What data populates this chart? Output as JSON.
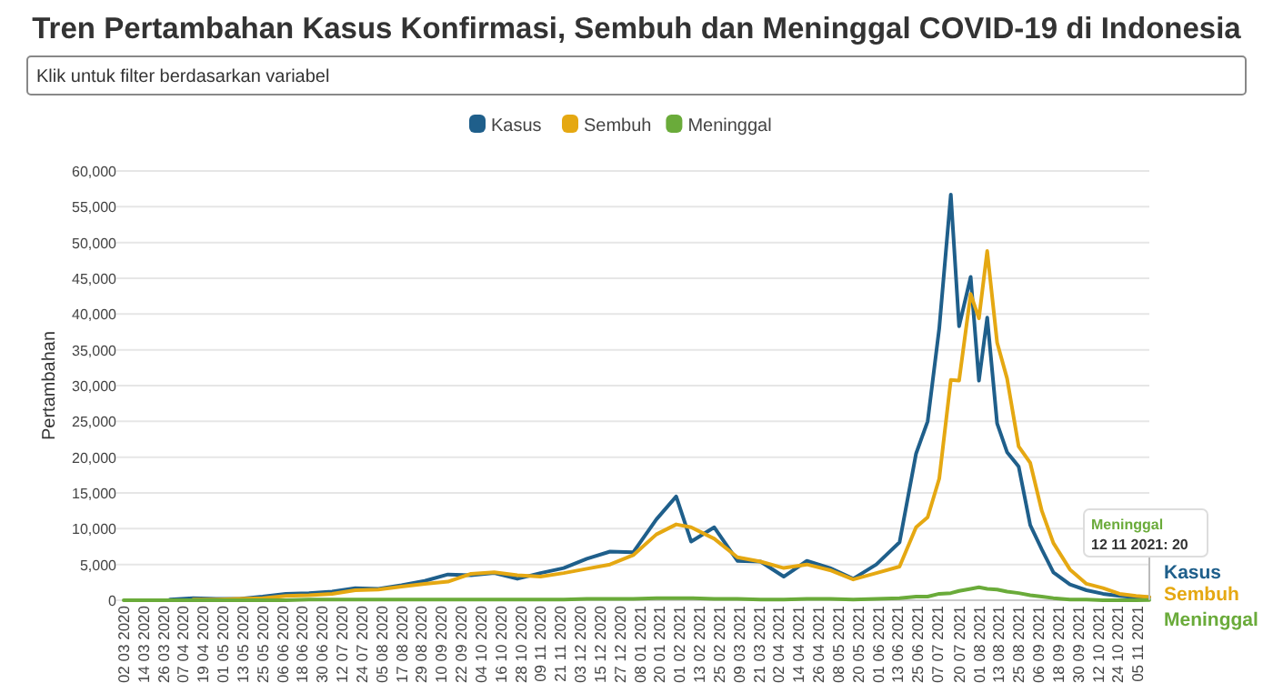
{
  "chart_data": {
    "type": "line",
    "title": "Tren Pertambahan Kasus Konfirmasi, Sembuh dan Meninggal COVID-19 di Indonesia",
    "ylabel": "Pertambahan",
    "annotations": [
      "Klik untuk filter berdasarkan variabel",
      {
        "text": "12 11 2021: 20",
        "x": "2021-11-12",
        "y": 20
      }
    ],
    "x": [
      "2020-03-02",
      "2020-03-16",
      "2020-03-30",
      "2020-04-13",
      "2020-04-27",
      "2020-05-11",
      "2020-05-25",
      "2020-06-08",
      "2020-06-22",
      "2020-07-06",
      "2020-07-20",
      "2020-08-03",
      "2020-08-17",
      "2020-08-31",
      "2020-09-14",
      "2020-09-28",
      "2020-10-12",
      "2020-10-26",
      "2020-11-09",
      "2020-11-23",
      "2020-12-07",
      "2020-12-21",
      "2021-01-04",
      "2021-01-18",
      "2021-01-30",
      "2021-02-08",
      "2021-02-22",
      "2021-03-08",
      "2021-03-22",
      "2021-04-05",
      "2021-04-19",
      "2021-05-03",
      "2021-05-17",
      "2021-05-31",
      "2021-06-14",
      "2021-06-24",
      "2021-07-01",
      "2021-07-08",
      "2021-07-15",
      "2021-07-20",
      "2021-07-27",
      "2021-08-01",
      "2021-08-06",
      "2021-08-12",
      "2021-08-18",
      "2021-08-25",
      "2021-09-01",
      "2021-09-08",
      "2021-09-15",
      "2021-09-25",
      "2021-10-05",
      "2021-10-15",
      "2021-10-25",
      "2021-11-04",
      "2021-11-12"
    ],
    "series": [
      {
        "name": "Kasus",
        "color": "#1f5f8b",
        "values": [
          null,
          null,
          100,
          300,
          200,
          200,
          500,
          900,
          1000,
          1200,
          1700,
          1600,
          2100,
          2700,
          3600,
          3500,
          3800,
          3000,
          3800,
          4500,
          5800,
          6800,
          6700,
          11300,
          14500,
          8200,
          10200,
          5500,
          5400,
          3300,
          5500,
          4500,
          3000,
          5000,
          8100,
          20500,
          25000,
          38000,
          56700,
          38300,
          45200,
          30700,
          39500,
          24700,
          20700,
          18700,
          10500,
          7100,
          3900,
          2200,
          1400,
          900,
          600,
          400,
          420
        ]
      },
      {
        "name": "Sembuh",
        "color": "#e5a812",
        "values": [
          null,
          null,
          null,
          100,
          100,
          200,
          300,
          600,
          700,
          900,
          1400,
          1500,
          1900,
          2300,
          2600,
          3700,
          3900,
          3500,
          3300,
          3800,
          4400,
          5000,
          6300,
          9200,
          10600,
          10200,
          8600,
          6000,
          5400,
          4500,
          5000,
          4200,
          2900,
          3800,
          4700,
          10200,
          11600,
          17000,
          30800,
          30700,
          42800,
          39400,
          48800,
          36000,
          31000,
          21500,
          19200,
          12500,
          8000,
          4300,
          2300,
          1700,
          900,
          600,
          450
        ]
      },
      {
        "name": "Meninggal",
        "color": "#6aab3a",
        "values": [
          0,
          0,
          0,
          0,
          0,
          0,
          0,
          0,
          100,
          100,
          100,
          100,
          100,
          100,
          100,
          100,
          100,
          100,
          100,
          100,
          200,
          200,
          200,
          300,
          300,
          300,
          200,
          200,
          100,
          100,
          200,
          200,
          100,
          200,
          300,
          500,
          500,
          900,
          1000,
          1300,
          1600,
          1800,
          1600,
          1500,
          1200,
          1000,
          700,
          500,
          300,
          100,
          100,
          0,
          0,
          0,
          20
        ]
      }
    ],
    "xlim": [
      "2020-03-02",
      "2021-11-12"
    ],
    "xticks": [
      {
        "value": "2020-03-02",
        "label": "02 03 2020"
      },
      {
        "value": "2020-03-14",
        "label": "14 03 2020"
      },
      {
        "value": "2020-03-26",
        "label": "26 03 2020"
      },
      {
        "value": "2020-04-07",
        "label": "07 04 2020"
      },
      {
        "value": "2020-04-19",
        "label": "19 04 2020"
      },
      {
        "value": "2020-05-01",
        "label": "01 05 2020"
      },
      {
        "value": "2020-05-13",
        "label": "13 05 2020"
      },
      {
        "value": "2020-05-25",
        "label": "25 05 2020"
      },
      {
        "value": "2020-06-06",
        "label": "06 06 2020"
      },
      {
        "value": "2020-06-18",
        "label": "18 06 2020"
      },
      {
        "value": "2020-06-30",
        "label": "30 06 2020"
      },
      {
        "value": "2020-07-12",
        "label": "12 07 2020"
      },
      {
        "value": "2020-07-24",
        "label": "24 07 2020"
      },
      {
        "value": "2020-08-05",
        "label": "05 08 2020"
      },
      {
        "value": "2020-08-17",
        "label": "17 08 2020"
      },
      {
        "value": "2020-08-29",
        "label": "29 08 2020"
      },
      {
        "value": "2020-09-10",
        "label": "10 09 2020"
      },
      {
        "value": "2020-09-22",
        "label": "22 09 2020"
      },
      {
        "value": "2020-10-04",
        "label": "04 10 2020"
      },
      {
        "value": "2020-10-16",
        "label": "16 10 2020"
      },
      {
        "value": "2020-10-28",
        "label": "28 10 2020"
      },
      {
        "value": "2020-11-09",
        "label": "09 11 2020"
      },
      {
        "value": "2020-11-21",
        "label": "21 11 2020"
      },
      {
        "value": "2020-12-03",
        "label": "03 12 2020"
      },
      {
        "value": "2020-12-15",
        "label": "15 12 2020"
      },
      {
        "value": "2020-12-27",
        "label": "27 12 2020"
      },
      {
        "value": "2021-01-08",
        "label": "08 01 2021"
      },
      {
        "value": "2021-01-20",
        "label": "20 01 2021"
      },
      {
        "value": "2021-02-01",
        "label": "01 02 2021"
      },
      {
        "value": "2021-02-13",
        "label": "13 02 2021"
      },
      {
        "value": "2021-02-25",
        "label": "25 02 2021"
      },
      {
        "value": "2021-03-09",
        "label": "09 03 2021"
      },
      {
        "value": "2021-03-21",
        "label": "21 03 2021"
      },
      {
        "value": "2021-04-02",
        "label": "02 04 2021"
      },
      {
        "value": "2021-04-14",
        "label": "14 04 2021"
      },
      {
        "value": "2021-04-26",
        "label": "26 04 2021"
      },
      {
        "value": "2021-05-08",
        "label": "08 05 2021"
      },
      {
        "value": "2021-05-20",
        "label": "20 05 2021"
      },
      {
        "value": "2021-06-01",
        "label": "01 06 2021"
      },
      {
        "value": "2021-06-13",
        "label": "13 06 2021"
      },
      {
        "value": "2021-06-25",
        "label": "25 06 2021"
      },
      {
        "value": "2021-07-07",
        "label": "07 07 2021"
      },
      {
        "value": "2021-07-20",
        "label": "20 07 2021"
      },
      {
        "value": "2021-08-01",
        "label": "01 08 2021"
      },
      {
        "value": "2021-08-13",
        "label": "13 08 2021"
      },
      {
        "value": "2021-08-25",
        "label": "25 08 2021"
      },
      {
        "value": "2021-09-06",
        "label": "06 09 2021"
      },
      {
        "value": "2021-09-18",
        "label": "18 09 2021"
      },
      {
        "value": "2021-09-30",
        "label": "30 09 2021"
      },
      {
        "value": "2021-10-12",
        "label": "12 10 2021"
      },
      {
        "value": "2021-10-24",
        "label": "24 10 2021"
      },
      {
        "value": "2021-11-05",
        "label": "05 11 2021"
      }
    ],
    "ylim": [
      0,
      60000
    ],
    "yticks": [
      {
        "value": 0,
        "label": "0"
      },
      {
        "value": 5000,
        "label": "5,000"
      },
      {
        "value": 10000,
        "label": "10,000"
      },
      {
        "value": 15000,
        "label": "15,000"
      },
      {
        "value": 20000,
        "label": "20,000"
      },
      {
        "value": 25000,
        "label": "25,000"
      },
      {
        "value": 30000,
        "label": "30,000"
      },
      {
        "value": 35000,
        "label": "35,000"
      },
      {
        "value": 40000,
        "label": "40,000"
      },
      {
        "value": 45000,
        "label": "45,000"
      },
      {
        "value": 50000,
        "label": "50,000"
      },
      {
        "value": 55000,
        "label": "55,000"
      },
      {
        "value": 60000,
        "label": "60,000"
      }
    ],
    "grid": "y",
    "legend": "top",
    "marker": "none",
    "line_style": "solid"
  }
}
